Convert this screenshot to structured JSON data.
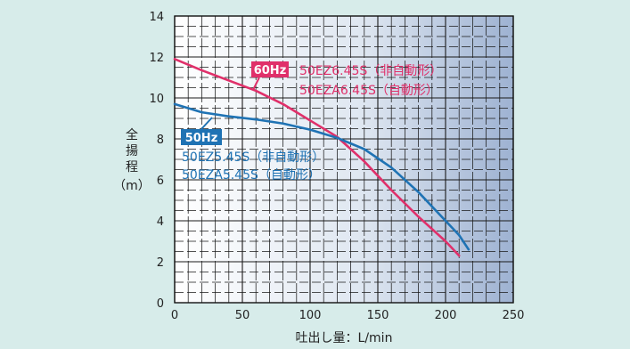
{
  "chart_data": {
    "type": "line",
    "xlabel": "吐出し量：L/min",
    "ylabel": [
      "全",
      "揚",
      "程",
      "（m）"
    ],
    "xlim": [
      0,
      250
    ],
    "ylim": [
      0,
      14
    ],
    "x_ticks": [
      0,
      50,
      100,
      150,
      200,
      250
    ],
    "y_ticks": [
      0,
      2,
      4,
      6,
      8,
      10,
      12,
      14
    ],
    "grid": true,
    "series": [
      {
        "name": "60Hz",
        "models": [
          "50EZ6.45S（非自動形）",
          "50EZA6.45S（自動形）"
        ],
        "color": "#e0306a",
        "label_bg": "#e0306a",
        "x": [
          0,
          20,
          40,
          60,
          80,
          100,
          120,
          140,
          160,
          180,
          200,
          210
        ],
        "y": [
          11.9,
          11.35,
          10.85,
          10.35,
          9.7,
          8.9,
          8.1,
          6.9,
          5.5,
          4.2,
          3.0,
          2.3
        ]
      },
      {
        "name": "50Hz",
        "models": [
          "50EZ5.45S（非自動形）",
          "50EZA5.45S（自動形）"
        ],
        "color": "#1f73b4",
        "label_bg": "#1f73b4",
        "x": [
          0,
          20,
          40,
          60,
          80,
          100,
          120,
          140,
          160,
          180,
          200,
          210,
          217
        ],
        "y": [
          9.7,
          9.3,
          9.1,
          8.95,
          8.75,
          8.45,
          8.05,
          7.5,
          6.6,
          5.4,
          4.0,
          3.3,
          2.6
        ]
      }
    ]
  }
}
